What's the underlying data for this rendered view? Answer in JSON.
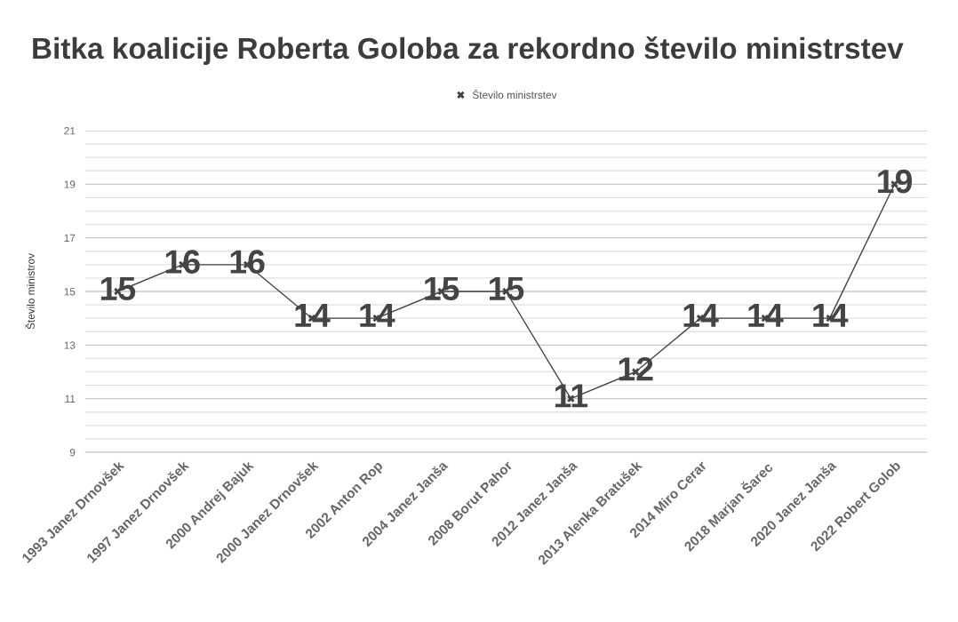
{
  "chart_data": {
    "type": "line",
    "title": "Bitka koalicije Roberta Goloba za rekordno število ministrstev",
    "ylabel": "Število ministrov",
    "categories": [
      "1993 Janez Drnovšek",
      "1997 Janez Drnovšek",
      "2000 Andrej Bajuk",
      "2000 Janez Drnovšek",
      "2002 Anton Rop",
      "2004 Janez Janša",
      "2008 Borut Pahor",
      "2012 Janez Janša",
      "2013 Alenka Bratušek",
      "2014 Miro Cerar",
      "2018 Marjan Šarec",
      "2020 Janez Janša",
      "2022 Robert Golob"
    ],
    "series": [
      {
        "name": "Število ministrstev",
        "color": "#444444",
        "values": [
          15,
          16,
          16,
          14,
          14,
          15,
          15,
          11,
          12,
          14,
          14,
          14,
          19
        ]
      }
    ],
    "ylim": [
      9,
      21
    ],
    "yticks": [
      9,
      {
        "value": 9.5,
        "label": null
      },
      {
        "value": 10,
        "label": null
      },
      {
        "value": 10.5,
        "label": null
      },
      11,
      {
        "value": 11.5,
        "label": null
      },
      {
        "value": 12,
        "label": null
      },
      {
        "value": 12.5,
        "label": null
      },
      13,
      {
        "value": 13.5,
        "label": null
      },
      {
        "value": 14,
        "label": null
      },
      {
        "value": 14.5,
        "label": null
      },
      15,
      {
        "value": 15.5,
        "label": null
      },
      {
        "value": 16,
        "label": null
      },
      {
        "value": 16.5,
        "label": null
      },
      17,
      {
        "value": 17.5,
        "label": null
      },
      {
        "value": 18,
        "label": null
      },
      {
        "value": 18.5,
        "label": null
      },
      19,
      {
        "value": 19.5,
        "label": null
      },
      {
        "value": 20,
        "label": null
      },
      {
        "value": 20.5,
        "label": null
      },
      21
    ],
    "grid": "y",
    "legend": "top",
    "marker": "cross",
    "line_style": "solid",
    "data_labels": true
  }
}
